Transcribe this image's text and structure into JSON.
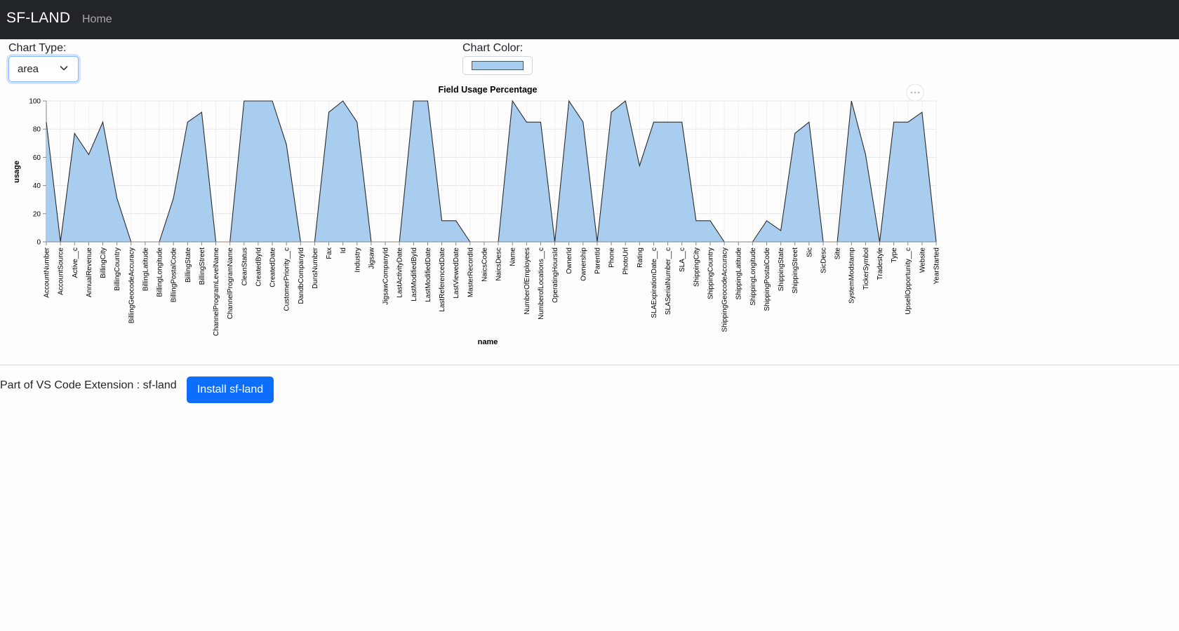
{
  "app": {
    "brand": "SF-LAND",
    "nav": {
      "home": "Home"
    }
  },
  "controls": {
    "chart_type_label": "Chart Type:",
    "chart_type_value": "area",
    "chart_color_label": "Chart Color:",
    "chart_color_value": "#a9cdee",
    "menu_icon": "ellipsis-icon"
  },
  "footer": {
    "text": "Part of VS Code Extension : sf-land",
    "install_label": "Install sf-land"
  },
  "colors": {
    "navbar": "#212529",
    "button": "#0d6efd",
    "area_fill": "#a9cdee",
    "area_stroke": "#2b2b2b"
  },
  "chart_data": {
    "type": "area",
    "title": "Field Usage Percentage",
    "xlabel": "name",
    "ylabel": "usage",
    "ylim": [
      0,
      100
    ],
    "yticks": [
      0,
      20,
      40,
      60,
      80,
      100
    ],
    "grid": true,
    "categories": [
      "AccountNumber",
      "AccountSource",
      "Active__c",
      "AnnualRevenue",
      "BillingCity",
      "BillingCountry",
      "BillingGeocodeAccuracy",
      "BillingLatitude",
      "BillingLongitude",
      "BillingPostalCode",
      "BillingState",
      "BillingStreet",
      "ChannelProgramLevelName",
      "ChannelProgramName",
      "CleanStatus",
      "CreatedById",
      "CreatedDate",
      "CustomerPriority__c",
      "DandbCompanyId",
      "DunsNumber",
      "Fax",
      "Id",
      "Industry",
      "Jigsaw",
      "JigsawCompanyId",
      "LastActivityDate",
      "LastModifiedById",
      "LastModifiedDate",
      "LastReferencedDate",
      "LastViewedDate",
      "MasterRecordId",
      "NaicsCode",
      "NaicsDesc",
      "Name",
      "NumberOfEmployees",
      "NumberofLocations__c",
      "OperatingHoursId",
      "OwnerId",
      "Ownership",
      "ParentId",
      "Phone",
      "PhotoUrl",
      "Rating",
      "SLAExpirationDate__c",
      "SLASerialNumber__c",
      "SLA__c",
      "ShippingCity",
      "ShippingCountry",
      "ShippingGeocodeAccuracy",
      "ShippingLatitude",
      "ShippingLongitude",
      "ShippingPostalCode",
      "ShippingState",
      "ShippingStreet",
      "Sic",
      "SicDesc",
      "Site",
      "SystemModstamp",
      "TickerSymbol",
      "Tradestyle",
      "Type",
      "UpsellOpportunity__c",
      "Website",
      "YearStarted"
    ],
    "values": [
      85,
      0,
      77,
      62,
      85,
      31,
      0,
      0,
      0,
      31,
      85,
      92,
      0,
      0,
      100,
      100,
      100,
      69,
      0,
      0,
      92,
      100,
      85,
      0,
      0,
      0,
      100,
      100,
      15,
      15,
      0,
      0,
      0,
      100,
      85,
      85,
      0,
      100,
      85,
      0,
      92,
      100,
      54,
      85,
      85,
      85,
      15,
      15,
      0,
      0,
      0,
      15,
      8,
      77,
      85,
      0,
      0,
      100,
      62,
      0,
      85,
      85,
      92,
      0
    ]
  }
}
